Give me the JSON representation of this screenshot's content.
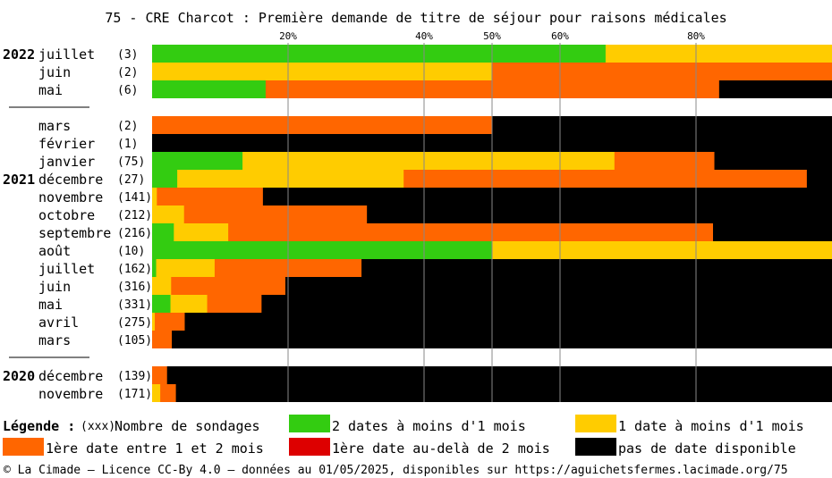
{
  "chart_data": {
    "type": "bar",
    "orientation": "horizontal",
    "stacked": true,
    "title": "75 - CRE Charcot : Première demande de titre de séjour pour raisons médicales",
    "xlim": [
      0,
      100
    ],
    "ticks": [
      "20%",
      "40%",
      "50%",
      "60%",
      "80%"
    ],
    "tick_values": [
      20,
      40,
      50,
      60,
      80
    ],
    "colors": {
      "green": "#33cc11",
      "yellow": "#ffcc00",
      "orange": "#ff6600",
      "red": "#dd0000",
      "black": "#000000"
    },
    "rows": [
      {
        "year": "2022",
        "month": "juillet",
        "count": "(3)",
        "values": [
          66.7,
          33.3,
          0,
          0,
          0
        ]
      },
      {
        "year": "",
        "month": "juin",
        "count": "(2)",
        "values": [
          0,
          50,
          50,
          0,
          0
        ]
      },
      {
        "year": "",
        "month": "mai",
        "count": "(6)",
        "values": [
          16.7,
          0,
          66.7,
          0,
          16.7
        ]
      },
      {
        "separator": true
      },
      {
        "year": "",
        "month": "mars",
        "count": "(2)",
        "values": [
          0,
          0,
          50,
          0,
          50
        ]
      },
      {
        "year": "",
        "month": "février",
        "count": "(1)",
        "values": [
          0,
          0,
          0,
          0,
          100
        ]
      },
      {
        "year": "",
        "month": "janvier",
        "count": "(75)",
        "values": [
          13.3,
          54.7,
          14.7,
          0,
          17.3
        ]
      },
      {
        "year": "2021",
        "month": "décembre",
        "count": "(27)",
        "values": [
          3.7,
          33.3,
          59.3,
          0,
          3.7
        ]
      },
      {
        "year": "",
        "month": "novembre",
        "count": "(141)",
        "values": [
          0,
          0.7,
          15.6,
          0,
          83.7
        ]
      },
      {
        "year": "",
        "month": "octobre",
        "count": "(212)",
        "values": [
          0,
          4.7,
          26.9,
          0,
          68.4
        ]
      },
      {
        "year": "",
        "month": "septembre",
        "count": "(216)",
        "values": [
          3.2,
          8.0,
          71.3,
          0,
          17.5
        ]
      },
      {
        "year": "",
        "month": "août",
        "count": "(10)",
        "values": [
          50,
          50,
          0,
          0,
          0
        ]
      },
      {
        "year": "",
        "month": "juillet",
        "count": "(162)",
        "values": [
          0.6,
          8.6,
          21.6,
          0,
          69.2
        ]
      },
      {
        "year": "",
        "month": "juin",
        "count": "(316)",
        "values": [
          0,
          2.8,
          16.8,
          0,
          80.4
        ]
      },
      {
        "year": "",
        "month": "mai",
        "count": "(331)",
        "values": [
          2.7,
          5.4,
          8.0,
          0,
          83.9
        ]
      },
      {
        "year": "",
        "month": "avril",
        "count": "(275)",
        "values": [
          0,
          0.4,
          4.4,
          0,
          95.2
        ]
      },
      {
        "year": "",
        "month": "mars",
        "count": "(105)",
        "values": [
          0,
          0,
          2.9,
          0,
          97.1
        ]
      },
      {
        "separator": true
      },
      {
        "year": "2020",
        "month": "décembre",
        "count": "(139)",
        "values": [
          0,
          0,
          2.2,
          0,
          97.8
        ]
      },
      {
        "year": "",
        "month": "novembre",
        "count": "(171)",
        "values": [
          0,
          1.2,
          2.3,
          0,
          96.5
        ]
      }
    ],
    "legend": {
      "title": "Légende :",
      "count_marker": "(xxx)",
      "count_label": "Nombre de sondages",
      "items": [
        {
          "label": "2 dates à moins d'1 mois",
          "color": "#33cc11"
        },
        {
          "label": "1 date à moins d'1 mois",
          "color": "#ffcc00"
        },
        {
          "label": "1ère date entre 1 et 2 mois",
          "color": "#ff6600"
        },
        {
          "label": "1ère date au-delà de 2 mois",
          "color": "#dd0000"
        },
        {
          "label": "pas de date disponible",
          "color": "#000000"
        }
      ]
    }
  },
  "footer": "© La Cimade – Licence CC-By 4.0 – données au 01/05/2025, disponibles sur https://aguichetsfermes.lacimade.org/75"
}
